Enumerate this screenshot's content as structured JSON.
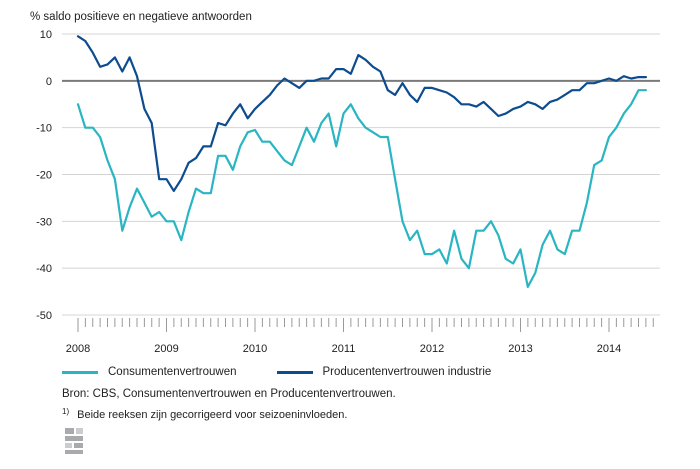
{
  "chart_data": {
    "type": "line",
    "ylabel": "% saldo positieve en negatieve antwoorden",
    "ylim": [
      -50,
      10
    ],
    "yticks": [
      10,
      0,
      -10,
      -20,
      -30,
      -40,
      -50
    ],
    "xlim": [
      2008,
      2014.75
    ],
    "xticks": [
      2008,
      2009,
      2010,
      2011,
      2012,
      2013,
      2014
    ],
    "grid": "horizontal",
    "legend_position": "bottom",
    "series": [
      {
        "name": "Consumentenvertrouwen",
        "color": "#29b5c2",
        "x": [
          2008.0,
          2008.083,
          2008.167,
          2008.25,
          2008.333,
          2008.417,
          2008.5,
          2008.583,
          2008.667,
          2008.75,
          2008.833,
          2008.917,
          2009.0,
          2009.083,
          2009.167,
          2009.25,
          2009.333,
          2009.417,
          2009.5,
          2009.583,
          2009.667,
          2009.75,
          2009.833,
          2009.917,
          2010.0,
          2010.083,
          2010.167,
          2010.25,
          2010.333,
          2010.417,
          2010.5,
          2010.583,
          2010.667,
          2010.75,
          2010.833,
          2010.917,
          2011.0,
          2011.083,
          2011.167,
          2011.25,
          2011.333,
          2011.417,
          2011.5,
          2011.583,
          2011.667,
          2011.75,
          2011.833,
          2011.917,
          2012.0,
          2012.083,
          2012.167,
          2012.25,
          2012.333,
          2012.417,
          2012.5,
          2012.583,
          2012.667,
          2012.75,
          2012.833,
          2012.917,
          2013.0,
          2013.083,
          2013.167,
          2013.25,
          2013.333,
          2013.417,
          2013.5,
          2013.583,
          2013.667,
          2013.75,
          2013.833,
          2013.917,
          2014.0,
          2014.083,
          2014.167,
          2014.25,
          2014.333,
          2014.417
        ],
        "values": [
          -5,
          -10,
          -10,
          -12,
          -17,
          -21,
          -32,
          -27,
          -23,
          -26,
          -29,
          -28,
          -30,
          -30,
          -34,
          -28,
          -23,
          -24,
          -24,
          -16,
          -16,
          -19,
          -14,
          -11,
          -10.5,
          -13,
          -13,
          -15,
          -17,
          -18,
          -14,
          -10,
          -13,
          -9,
          -7,
          -14,
          -7,
          -5,
          -8,
          -10,
          -11,
          -12,
          -12,
          -21,
          -30,
          -34,
          -32,
          -37,
          -37,
          -36,
          -39,
          -32,
          -38,
          -40,
          -32,
          -32,
          -30,
          -33,
          -38,
          -39,
          -36,
          -44,
          -41,
          -35,
          -32,
          -36,
          -37,
          -32,
          -32,
          -26,
          -18,
          -17,
          -12,
          -10,
          -7,
          -5,
          -2,
          -2
        ]
      },
      {
        "name": "Producentenvertrouwen industrie",
        "color": "#0d4c8f",
        "x": [
          2008.0,
          2008.083,
          2008.167,
          2008.25,
          2008.333,
          2008.417,
          2008.5,
          2008.583,
          2008.667,
          2008.75,
          2008.833,
          2008.917,
          2009.0,
          2009.083,
          2009.167,
          2009.25,
          2009.333,
          2009.417,
          2009.5,
          2009.583,
          2009.667,
          2009.75,
          2009.833,
          2009.917,
          2010.0,
          2010.083,
          2010.167,
          2010.25,
          2010.333,
          2010.417,
          2010.5,
          2010.583,
          2010.667,
          2010.75,
          2010.833,
          2010.917,
          2011.0,
          2011.083,
          2011.167,
          2011.25,
          2011.333,
          2011.417,
          2011.5,
          2011.583,
          2011.667,
          2011.75,
          2011.833,
          2011.917,
          2012.0,
          2012.083,
          2012.167,
          2012.25,
          2012.333,
          2012.417,
          2012.5,
          2012.583,
          2012.667,
          2012.75,
          2012.833,
          2012.917,
          2013.0,
          2013.083,
          2013.167,
          2013.25,
          2013.333,
          2013.417,
          2013.5,
          2013.583,
          2013.667,
          2013.75,
          2013.833,
          2013.917,
          2014.0,
          2014.083,
          2014.167,
          2014.25,
          2014.333,
          2014.417
        ],
        "values": [
          9.5,
          8.5,
          6,
          3,
          3.5,
          5,
          2,
          5,
          1,
          -6,
          -9,
          -21,
          -21,
          -23.5,
          -21,
          -17.5,
          -16.5,
          -14,
          -14,
          -9,
          -9.5,
          -7,
          -5,
          -8,
          -6,
          -4.5,
          -3,
          -1,
          0.5,
          -0.5,
          -1.5,
          0,
          0,
          0.5,
          0.5,
          2.5,
          2.5,
          1.5,
          5.5,
          4.5,
          3,
          2,
          -2,
          -3,
          -0.5,
          -3,
          -4.5,
          -1.5,
          -1.5,
          -2,
          -2.5,
          -3.5,
          -5,
          -5,
          -5.5,
          -4.5,
          -6,
          -7.5,
          -7,
          -6,
          -5.5,
          -4.5,
          -5,
          -6,
          -4.5,
          -4,
          -3,
          -2,
          -2,
          -0.5,
          -0.5,
          0,
          0.5,
          0,
          1,
          0.5,
          0.8,
          0.8
        ]
      }
    ]
  },
  "legend": {
    "items": [
      "Consumentenvertrouwen",
      "Producentenvertrouwen industrie"
    ]
  },
  "source": "Bron: CBS, Consumentenvertrouwen en Producentenvertrouwen.",
  "note": {
    "marker": "1)",
    "text": "Beide reeksen zijn gecorrigeerd voor seizoeninvloeden."
  },
  "logo": {
    "icon": "cbs-logo-icon",
    "color": "#a8aaad"
  }
}
